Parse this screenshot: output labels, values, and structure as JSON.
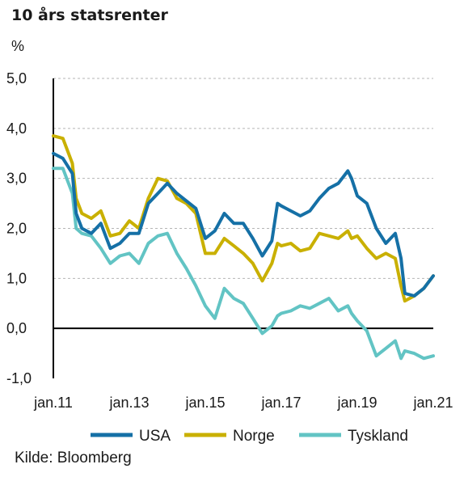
{
  "title": "10 års statsrenter",
  "source": "Kilde: Bloomberg",
  "chart_data": {
    "type": "line",
    "title": "10 års statsrenter",
    "ylabel": "%",
    "ylim": [
      -1.0,
      5.0
    ],
    "yticks": [
      {
        "value": 5.0,
        "label": "5,0"
      },
      {
        "value": 4.0,
        "label": "4,0"
      },
      {
        "value": 3.0,
        "label": "3,0"
      },
      {
        "value": 2.0,
        "label": "2,0"
      },
      {
        "value": 1.0,
        "label": "1,0"
      },
      {
        "value": 0.0,
        "label": "0,0"
      },
      {
        "value": -1.0,
        "label": "-1,0"
      }
    ],
    "xlim": [
      2011.0,
      2021.0
    ],
    "xticks": [
      {
        "value": 2011.0,
        "label": "jan.11"
      },
      {
        "value": 2013.0,
        "label": "jan.13"
      },
      {
        "value": 2015.0,
        "label": "jan.15"
      },
      {
        "value": 2017.0,
        "label": "jan.17"
      },
      {
        "value": 2019.0,
        "label": "jan.19"
      },
      {
        "value": 2021.0,
        "label": "jan.21"
      }
    ],
    "grid": "horizontal-dashed",
    "legend_position": "bottom",
    "series": [
      {
        "name": "USA",
        "color": "#1570a6",
        "x": [
          2011.0,
          2011.25,
          2011.5,
          2011.6,
          2011.75,
          2012.0,
          2012.25,
          2012.5,
          2012.75,
          2013.0,
          2013.25,
          2013.5,
          2013.75,
          2014.0,
          2014.25,
          2014.5,
          2014.75,
          2015.0,
          2015.25,
          2015.5,
          2015.75,
          2016.0,
          2016.25,
          2016.5,
          2016.75,
          2016.9,
          2017.0,
          2017.25,
          2017.5,
          2017.75,
          2018.0,
          2018.25,
          2018.5,
          2018.75,
          2018.85,
          2019.0,
          2019.25,
          2019.5,
          2019.75,
          2020.0,
          2020.15,
          2020.25,
          2020.5,
          2020.75,
          2021.0
        ],
        "y": [
          3.5,
          3.4,
          3.1,
          2.3,
          2.0,
          1.9,
          2.1,
          1.6,
          1.7,
          1.9,
          1.9,
          2.5,
          2.7,
          2.9,
          2.7,
          2.55,
          2.4,
          1.8,
          1.95,
          2.3,
          2.1,
          2.1,
          1.8,
          1.45,
          1.75,
          2.5,
          2.45,
          2.35,
          2.25,
          2.35,
          2.6,
          2.8,
          2.9,
          3.15,
          3.0,
          2.65,
          2.5,
          2.0,
          1.7,
          1.9,
          1.4,
          0.7,
          0.65,
          0.8,
          1.05
        ]
      },
      {
        "name": "Norge",
        "color": "#c9b000",
        "x": [
          2011.0,
          2011.25,
          2011.5,
          2011.6,
          2011.75,
          2012.0,
          2012.25,
          2012.5,
          2012.75,
          2013.0,
          2013.25,
          2013.5,
          2013.75,
          2014.0,
          2014.25,
          2014.5,
          2014.75,
          2015.0,
          2015.25,
          2015.5,
          2015.75,
          2016.0,
          2016.25,
          2016.5,
          2016.75,
          2016.9,
          2017.0,
          2017.25,
          2017.5,
          2017.75,
          2018.0,
          2018.25,
          2018.5,
          2018.75,
          2018.85,
          2019.0,
          2019.25,
          2019.5,
          2019.75,
          2020.0,
          2020.15,
          2020.25,
          2020.5,
          2020.75,
          2021.0
        ],
        "y": [
          3.85,
          3.8,
          3.3,
          2.6,
          2.3,
          2.2,
          2.35,
          1.85,
          1.9,
          2.15,
          2.0,
          2.6,
          3.0,
          2.95,
          2.6,
          2.5,
          2.3,
          1.5,
          1.5,
          1.8,
          1.65,
          1.5,
          1.3,
          0.95,
          1.3,
          1.7,
          1.65,
          1.7,
          1.55,
          1.6,
          1.9,
          1.85,
          1.8,
          1.95,
          1.8,
          1.85,
          1.6,
          1.4,
          1.5,
          1.4,
          0.85,
          0.55,
          0.65,
          0.8,
          1.05
        ]
      },
      {
        "name": "Tyskland",
        "color": "#62c4c4",
        "x": [
          2011.0,
          2011.25,
          2011.5,
          2011.6,
          2011.75,
          2012.0,
          2012.25,
          2012.5,
          2012.75,
          2013.0,
          2013.25,
          2013.5,
          2013.75,
          2014.0,
          2014.25,
          2014.5,
          2014.75,
          2015.0,
          2015.25,
          2015.5,
          2015.75,
          2016.0,
          2016.25,
          2016.5,
          2016.75,
          2016.9,
          2017.0,
          2017.25,
          2017.5,
          2017.75,
          2018.0,
          2018.25,
          2018.5,
          2018.75,
          2018.85,
          2019.0,
          2019.25,
          2019.5,
          2019.75,
          2020.0,
          2020.15,
          2020.25,
          2020.5,
          2020.75,
          2021.0
        ],
        "y": [
          3.2,
          3.2,
          2.7,
          2.0,
          1.9,
          1.85,
          1.6,
          1.3,
          1.45,
          1.5,
          1.3,
          1.7,
          1.85,
          1.9,
          1.5,
          1.2,
          0.85,
          0.45,
          0.2,
          0.8,
          0.6,
          0.5,
          0.2,
          -0.1,
          0.05,
          0.25,
          0.3,
          0.35,
          0.45,
          0.4,
          0.5,
          0.6,
          0.35,
          0.45,
          0.3,
          0.15,
          -0.05,
          -0.55,
          -0.4,
          -0.25,
          -0.6,
          -0.45,
          -0.5,
          -0.6,
          -0.55
        ]
      }
    ]
  }
}
